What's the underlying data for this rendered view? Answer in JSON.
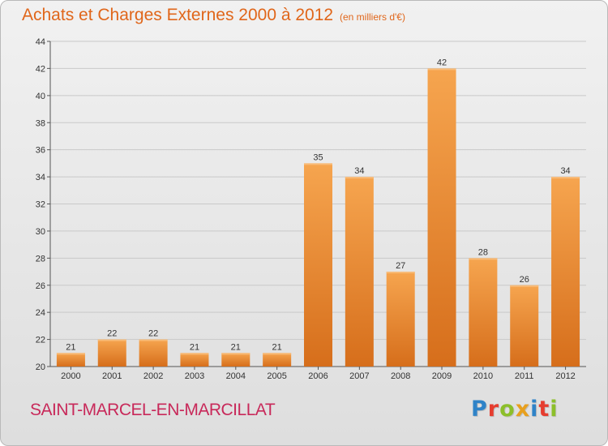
{
  "title": "Achats et Charges Externes 2000 à 2012",
  "subtitle": "(en milliers d'€)",
  "commune": "SAINT-MARCEL-EN-MARCILLAT",
  "logo": {
    "text": "Proxiti",
    "colors": [
      "#2f83c8",
      "#e63d2f",
      "#8cbf2a",
      "#e8a01e",
      "#2f83c8",
      "#e63d2f",
      "#8cbf2a"
    ]
  },
  "colors": {
    "title": "#e0661a",
    "commune": "#c8295a",
    "bar_top": "#f6a54f",
    "bar_bottom": "#d66e1b",
    "grid": "#c9c9c9",
    "axis_text": "#333333"
  },
  "chart_data": {
    "type": "bar",
    "categories": [
      "2000",
      "2001",
      "2002",
      "2003",
      "2004",
      "2005",
      "2006",
      "2007",
      "2008",
      "2009",
      "2010",
      "2011",
      "2012"
    ],
    "values": [
      21,
      22,
      22,
      21,
      21,
      21,
      35,
      34,
      27,
      42,
      28,
      26,
      34
    ],
    "data_labels": [
      "21",
      "22",
      "22",
      "21",
      "21",
      "21",
      "35",
      "34",
      "27",
      "42",
      "28",
      "26",
      "34"
    ],
    "ylim": [
      20,
      44
    ],
    "yticks": [
      20,
      22,
      24,
      26,
      28,
      30,
      32,
      34,
      36,
      38,
      40,
      42,
      44
    ],
    "grid": true,
    "xlabel": "",
    "ylabel": ""
  }
}
